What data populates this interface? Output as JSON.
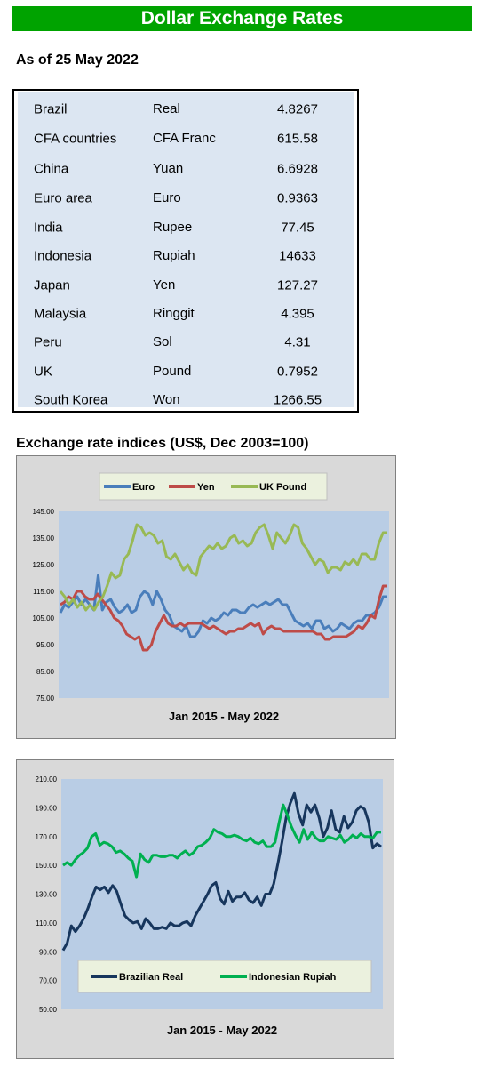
{
  "header": {
    "title": "Dollar Exchange Rates"
  },
  "as_of": "As of 25 May 2022",
  "rates": [
    {
      "country": "Brazil",
      "currency": "Real",
      "rate": "4.8267"
    },
    {
      "country": "CFA countries",
      "currency": "CFA Franc",
      "rate": "615.58"
    },
    {
      "country": "China",
      "currency": "Yuan",
      "rate": "6.6928"
    },
    {
      "country": "Euro area",
      "currency": "Euro",
      "rate": "0.9363"
    },
    {
      "country": "India",
      "currency": "Rupee",
      "rate": "77.45"
    },
    {
      "country": "Indonesia",
      "currency": "Rupiah",
      "rate": "14633"
    },
    {
      "country": "Japan",
      "currency": "Yen",
      "rate": "127.27"
    },
    {
      "country": "Malaysia",
      "currency": "Ringgit",
      "rate": "4.395"
    },
    {
      "country": "Peru",
      "currency": "Sol",
      "rate": "4.31"
    },
    {
      "country": "UK",
      "currency": "Pound",
      "rate": "0.7952"
    },
    {
      "country": "South Korea",
      "currency": "Won",
      "rate": "1266.55"
    }
  ],
  "indices_title": "Exchange rate indices (US$, Dec 2003=100)",
  "chart_data": [
    {
      "type": "line",
      "xlabel": "Jan 2015 - May 2022",
      "ylim": [
        75,
        145
      ],
      "yticks": [
        "145.00",
        "135.00",
        "125.00",
        "115.00",
        "105.00",
        "95.00",
        "85.00",
        "75.00"
      ],
      "grid": false,
      "legend": "top",
      "colors": {
        "Euro": "#4a7ebb",
        "Yen": "#be4b48",
        "UK Pound": "#98b954",
        "plot": "#b9cde5",
        "frame": "#d9d9d9",
        "legend_bg": "#ebf1de"
      },
      "series": [
        {
          "name": "Euro",
          "values": [
            107,
            110,
            109,
            111,
            113,
            110,
            112,
            110,
            108,
            121,
            108,
            111,
            112,
            109,
            107,
            108,
            110,
            107,
            108,
            113,
            115,
            114,
            110,
            115,
            112,
            108,
            106,
            102,
            101,
            100,
            102,
            98,
            98,
            100,
            104,
            103,
            105,
            104,
            105,
            107,
            106,
            108,
            108,
            107,
            107,
            109,
            110,
            109,
            110,
            111,
            110,
            111,
            112,
            110,
            110,
            107,
            104,
            103,
            102,
            103,
            101,
            104,
            104,
            101,
            102,
            100,
            101,
            103,
            102,
            101,
            103,
            104,
            104,
            106,
            106,
            107,
            109,
            113,
            113
          ]
        },
        {
          "name": "Yen",
          "values": [
            110,
            111,
            113,
            112,
            115,
            115,
            113,
            112,
            112,
            114,
            112,
            110,
            108,
            105,
            104,
            102,
            99,
            98,
            97,
            98,
            93,
            93,
            95,
            100,
            103,
            106,
            103,
            102,
            102,
            103,
            102,
            103,
            103,
            103,
            103,
            102,
            101,
            102,
            101,
            100,
            99,
            100,
            100,
            101,
            101,
            102,
            103,
            102,
            103,
            99,
            101,
            102,
            101,
            101,
            100,
            100,
            100,
            100,
            100,
            100,
            100,
            100,
            99,
            99,
            97,
            97,
            98,
            98,
            98,
            98,
            99,
            100,
            102,
            101,
            103,
            106,
            105,
            112,
            117,
            117
          ]
        },
        {
          "name": "UK Pound",
          "values": [
            115,
            113,
            110,
            112,
            109,
            111,
            108,
            110,
            108,
            111,
            113,
            117,
            122,
            120,
            121,
            127,
            129,
            134,
            140,
            139,
            136,
            137,
            136,
            133,
            134,
            128,
            127,
            129,
            126,
            123,
            125,
            122,
            121,
            128,
            130,
            132,
            131,
            133,
            131,
            132,
            135,
            136,
            133,
            134,
            132,
            133,
            137,
            139,
            140,
            136,
            131,
            137,
            135,
            133,
            136,
            140,
            139,
            133,
            131,
            128,
            125,
            127,
            126,
            122,
            124,
            124,
            123,
            126,
            125,
            127,
            125,
            129,
            129,
            127,
            127,
            133,
            137,
            137
          ]
        }
      ]
    },
    {
      "type": "line",
      "xlabel": "Jan 2015 - May 2022",
      "ylim": [
        50,
        210
      ],
      "yticks": [
        "210.00",
        "190.00",
        "170.00",
        "150.00",
        "130.00",
        "110.00",
        "90.00",
        "70.00",
        "50.00"
      ],
      "grid": false,
      "legend": "bottom",
      "colors": {
        "Brazilian Real": "#17365d",
        "Indonesian Rupiah": "#00b050",
        "plot": "#b9cde5",
        "frame": "#d9d9d9",
        "legend_bg": "#ebf1de"
      },
      "series": [
        {
          "name": "Brazilian Real",
          "values": [
            91,
            96,
            108,
            104,
            108,
            113,
            120,
            128,
            135,
            133,
            135,
            131,
            136,
            132,
            123,
            115,
            112,
            110,
            111,
            106,
            113,
            110,
            106,
            106,
            107,
            106,
            110,
            108,
            108,
            110,
            111,
            108,
            115,
            120,
            125,
            130,
            136,
            138,
            127,
            123,
            132,
            125,
            128,
            128,
            131,
            126,
            124,
            128,
            122,
            130,
            130,
            137,
            151,
            166,
            183,
            193,
            200,
            186,
            178,
            192,
            187,
            192,
            183,
            170,
            176,
            188,
            175,
            173,
            184,
            176,
            180,
            188,
            191,
            189,
            180,
            162,
            165,
            163
          ]
        },
        {
          "name": "Indonesian Rupiah",
          "values": [
            150,
            152,
            150,
            154,
            157,
            159,
            162,
            170,
            172,
            164,
            166,
            165,
            163,
            159,
            160,
            158,
            155,
            153,
            142,
            158,
            154,
            152,
            157,
            157,
            156,
            156,
            157,
            157,
            155,
            158,
            160,
            157,
            159,
            163,
            164,
            166,
            169,
            175,
            173,
            172,
            170,
            170,
            171,
            170,
            168,
            167,
            169,
            166,
            165,
            167,
            163,
            163,
            166,
            180,
            192,
            185,
            177,
            171,
            166,
            175,
            168,
            173,
            169,
            167,
            167,
            170,
            169,
            168,
            171,
            166,
            168,
            171,
            169,
            172,
            170,
            170,
            169,
            173,
            173
          ]
        }
      ]
    }
  ]
}
